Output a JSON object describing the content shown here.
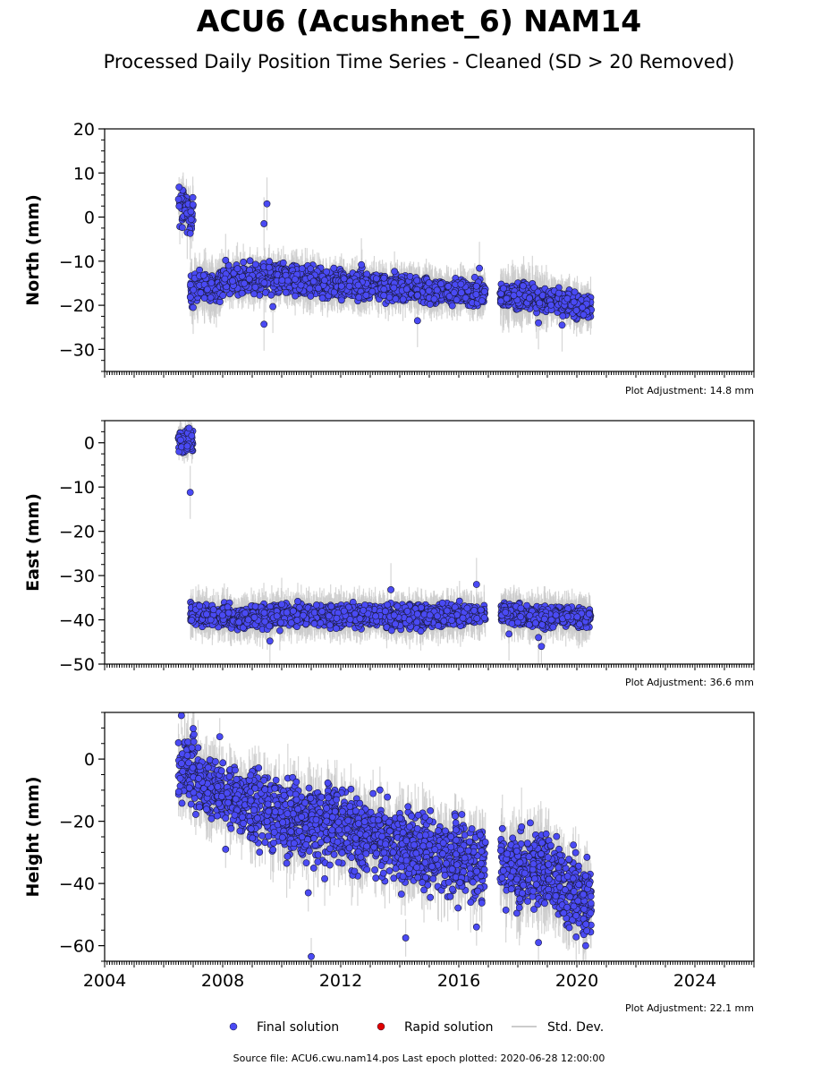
{
  "title": "ACU6 (Acushnet_6) NAM14",
  "subtitle": "Processed Daily Position Time Series - Cleaned (SD > 20 Removed)",
  "footer": "Source file: ACU6.cwu.nam14.pos  Last epoch plotted: 2020-06-28 12:00:00",
  "legend": [
    {
      "label": "Final solution",
      "color": "#4a4af4",
      "marker": "circle"
    },
    {
      "label": "Rapid solution",
      "color": "#e00000",
      "marker": "circle"
    },
    {
      "label": "Std. Dev.",
      "color": "#cccccc",
      "marker": "line"
    }
  ],
  "chart_data": [
    {
      "type": "scatter",
      "ylabel": "North (mm)",
      "adjustment": "Plot Adjustment: 14.8 mm",
      "xlim": [
        2004,
        2026
      ],
      "ylim": [
        -35,
        20
      ],
      "yticks": [
        20,
        10,
        0,
        -10,
        -20,
        -30
      ],
      "ytick_labels": [
        "20",
        "10",
        "0",
        "−10",
        "−20",
        "−30"
      ],
      "segments": [
        {
          "x": [
            2006.5,
            2007.0
          ],
          "y": [
            2.5,
            1.0
          ],
          "spread": 2.0,
          "err": 3
        },
        {
          "x": [
            2006.9,
            2008.0
          ],
          "y": [
            -16.5,
            -15.5
          ],
          "spread": 1.6,
          "err": 4
        },
        {
          "x": [
            2008.0,
            2010.0
          ],
          "y": [
            -14.5,
            -13.5
          ],
          "spread": 1.6,
          "err": 3
        },
        {
          "x": [
            2010.0,
            2012.0
          ],
          "y": [
            -14.0,
            -15.5
          ],
          "spread": 1.5,
          "err": 3
        },
        {
          "x": [
            2012.0,
            2014.5
          ],
          "y": [
            -15.5,
            -16.0
          ],
          "spread": 1.5,
          "err": 3
        },
        {
          "x": [
            2014.5,
            2016.9
          ],
          "y": [
            -16.5,
            -17.5
          ],
          "spread": 1.3,
          "err": 3
        },
        {
          "x": [
            2017.4,
            2019.0
          ],
          "y": [
            -18.0,
            -18.5
          ],
          "spread": 1.4,
          "err": 4
        },
        {
          "x": [
            2019.0,
            2020.5
          ],
          "y": [
            -18.5,
            -20.5
          ],
          "spread": 1.3,
          "err": 3
        }
      ],
      "outliers": [
        [
          2006.8,
          -3.5
        ],
        [
          2006.9,
          -3.7
        ],
        [
          2009.4,
          -1.5
        ],
        [
          2009.5,
          3.0
        ],
        [
          2009.4,
          -24.3
        ],
        [
          2007.0,
          -20.5
        ],
        [
          2008.1,
          -9.8
        ],
        [
          2009.7,
          -20.3
        ],
        [
          2014.6,
          -23.5
        ],
        [
          2018.7,
          -24.0
        ],
        [
          2019.5,
          -24.5
        ],
        [
          2008.5,
          -11.7
        ],
        [
          2016.7,
          -11.6
        ],
        [
          2012.7,
          -10.8
        ]
      ]
    },
    {
      "type": "scatter",
      "ylabel": "East (mm)",
      "adjustment": "Plot Adjustment: 36.6 mm",
      "xlim": [
        2004,
        2026
      ],
      "ylim": [
        -50,
        5
      ],
      "yticks": [
        0,
        -10,
        -20,
        -30,
        -40,
        -50
      ],
      "ytick_labels": [
        "0",
        "−10",
        "−20",
        "−30",
        "−40",
        "−50"
      ],
      "segments": [
        {
          "x": [
            2006.5,
            2007.0
          ],
          "y": [
            0.2,
            0.2
          ],
          "spread": 1.3,
          "err": 2
        },
        {
          "x": [
            2006.9,
            2008.5
          ],
          "y": [
            -38.5,
            -39.5
          ],
          "spread": 1.2,
          "err": 3
        },
        {
          "x": [
            2008.5,
            2011.0
          ],
          "y": [
            -39.8,
            -38.6
          ],
          "spread": 1.2,
          "err": 3
        },
        {
          "x": [
            2011.0,
            2013.5
          ],
          "y": [
            -39.0,
            -39.0
          ],
          "spread": 1.2,
          "err": 3
        },
        {
          "x": [
            2013.5,
            2016.9
          ],
          "y": [
            -39.5,
            -38.8
          ],
          "spread": 1.2,
          "err": 3
        },
        {
          "x": [
            2017.4,
            2020.5
          ],
          "y": [
            -38.8,
            -39.5
          ],
          "spread": 1.2,
          "err": 3
        }
      ],
      "outliers": [
        [
          2006.9,
          -11.2
        ],
        [
          2016.6,
          -32.0
        ],
        [
          2013.7,
          -33.2
        ],
        [
          2018.7,
          -44.0
        ],
        [
          2018.8,
          -46.0
        ],
        [
          2009.6,
          -44.8
        ],
        [
          2017.7,
          -43.2
        ],
        [
          2010.0,
          -36.5
        ]
      ]
    },
    {
      "type": "scatter",
      "ylabel": "Height (mm)",
      "adjustment": "Plot Adjustment: 22.1 mm",
      "xlim": [
        2004,
        2026
      ],
      "ylim": [
        -65,
        15
      ],
      "yticks": [
        0,
        -20,
        -40,
        -60
      ],
      "ytick_labels": [
        "0",
        "−20",
        "−40",
        "−60"
      ],
      "xticks": [
        2004,
        2008,
        2012,
        2016,
        2020,
        2024
      ],
      "xtick_labels": [
        "2004",
        "2008",
        "2012",
        "2016",
        "2020",
        "2024"
      ],
      "segments": [
        {
          "x": [
            2006.5,
            2007.8
          ],
          "y": [
            -2.0,
            -10.0
          ],
          "spread": 5.0,
          "err": 7
        },
        {
          "x": [
            2007.8,
            2008.9
          ],
          "y": [
            -10.0,
            -14.0
          ],
          "spread": 5.0,
          "err": 6
        },
        {
          "x": [
            2008.9,
            2011.5
          ],
          "y": [
            -15.0,
            -23.0
          ],
          "spread": 6.0,
          "err": 7
        },
        {
          "x": [
            2011.5,
            2014.0
          ],
          "y": [
            -20.0,
            -28.0
          ],
          "spread": 6.0,
          "err": 7
        },
        {
          "x": [
            2014.0,
            2016.9
          ],
          "y": [
            -28.0,
            -33.0
          ],
          "spread": 6.0,
          "err": 7
        },
        {
          "x": [
            2017.4,
            2019.0
          ],
          "y": [
            -34.0,
            -36.0
          ],
          "spread": 6.0,
          "err": 8
        },
        {
          "x": [
            2019.0,
            2020.5
          ],
          "y": [
            -36.0,
            -47.0
          ],
          "spread": 6.0,
          "err": 7
        }
      ],
      "outliers": [
        [
          2006.6,
          14.0
        ],
        [
          2007.0,
          9.8
        ],
        [
          2007.9,
          7.2
        ],
        [
          2011.0,
          -63.5
        ],
        [
          2010.9,
          -43.0
        ],
        [
          2014.2,
          -57.5
        ],
        [
          2018.7,
          -59.0
        ],
        [
          2020.3,
          -60.0
        ],
        [
          2008.1,
          -29.0
        ],
        [
          2016.6,
          -54.0
        ]
      ]
    }
  ]
}
